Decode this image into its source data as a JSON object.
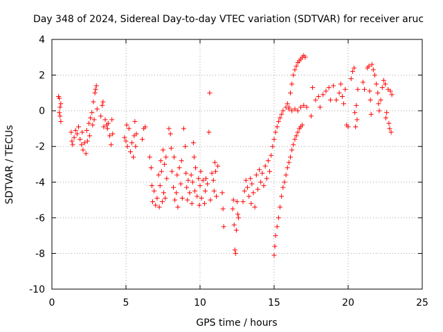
{
  "chart_data": {
    "type": "scatter",
    "title": "Day 348 of 2024, Sidereal Day-to-day VTEC variation (SDTVAR) for receiver aruc",
    "xlabel": "GPS time / hours",
    "ylabel": "SDTVAR / TECUs",
    "xlim": [
      0,
      25
    ],
    "ylim": [
      -10,
      4
    ],
    "xticks": [
      "0",
      "5",
      "10",
      "15",
      "20",
      "25"
    ],
    "yticks": [
      "4",
      "2",
      "0",
      "-2",
      "-4",
      "-6",
      "-8",
      "-10"
    ],
    "grid": true,
    "marker": "+",
    "series": [
      {
        "name": "SDTVAR",
        "color": "#ff0000",
        "points": [
          [
            0.45,
            0.8
          ],
          [
            0.5,
            0.7
          ],
          [
            0.55,
            0.2
          ],
          [
            0.55,
            -0.3
          ],
          [
            0.6,
            -0.6
          ],
          [
            0.5,
            -0.1
          ],
          [
            0.6,
            0.4
          ],
          [
            1.3,
            -1.2
          ],
          [
            1.35,
            -1.7
          ],
          [
            1.4,
            -1.9
          ],
          [
            1.5,
            -1.5
          ],
          [
            1.6,
            -1.1
          ],
          [
            1.7,
            -1.3
          ],
          [
            1.8,
            -0.9
          ],
          [
            1.9,
            -1.6
          ],
          [
            2.0,
            -1.9
          ],
          [
            2.05,
            -1.2
          ],
          [
            2.1,
            -2.2
          ],
          [
            2.2,
            -1.8
          ],
          [
            2.3,
            -2.4
          ],
          [
            2.35,
            -1.1
          ],
          [
            2.4,
            -1.7
          ],
          [
            2.5,
            -0.7
          ],
          [
            2.55,
            -1.4
          ],
          [
            2.6,
            -0.4
          ],
          [
            2.7,
            -0.1
          ],
          [
            2.75,
            -0.8
          ],
          [
            2.8,
            0.5
          ],
          [
            2.85,
            -0.5
          ],
          [
            2.9,
            1.0
          ],
          [
            2.95,
            1.2
          ],
          [
            3.0,
            1.4
          ],
          [
            3.05,
            0.1
          ],
          [
            3.3,
            -0.3
          ],
          [
            3.4,
            0.3
          ],
          [
            3.45,
            0.5
          ],
          [
            3.5,
            -0.9
          ],
          [
            3.6,
            -0.5
          ],
          [
            3.7,
            -0.8
          ],
          [
            3.75,
            -1.0
          ],
          [
            3.8,
            -0.7
          ],
          [
            3.9,
            -1.4
          ],
          [
            4.0,
            -1.9
          ],
          [
            4.05,
            -0.5
          ],
          [
            4.1,
            -1.3
          ],
          [
            4.9,
            -1.5
          ],
          [
            5.0,
            -1.7
          ],
          [
            5.05,
            -0.8
          ],
          [
            5.1,
            -2.0
          ],
          [
            5.2,
            -1.0
          ],
          [
            5.3,
            -2.3
          ],
          [
            5.4,
            -1.8
          ],
          [
            5.5,
            -2.6
          ],
          [
            5.55,
            -1.4
          ],
          [
            5.6,
            -0.6
          ],
          [
            5.65,
            -2.0
          ],
          [
            5.7,
            -1.3
          ],
          [
            6.1,
            -1.6
          ],
          [
            6.2,
            -1.0
          ],
          [
            6.3,
            -0.9
          ],
          [
            6.6,
            -2.6
          ],
          [
            6.7,
            -3.2
          ],
          [
            6.75,
            -4.2
          ],
          [
            6.8,
            -5.1
          ],
          [
            6.9,
            -4.5
          ],
          [
            7.0,
            -5.3
          ],
          [
            7.1,
            -4.9
          ],
          [
            7.2,
            -3.6
          ],
          [
            7.25,
            -5.4
          ],
          [
            7.3,
            -4.2
          ],
          [
            7.35,
            -2.8
          ],
          [
            7.4,
            -3.4
          ],
          [
            7.45,
            -5.1
          ],
          [
            7.5,
            -2.2
          ],
          [
            7.55,
            -4.6
          ],
          [
            7.6,
            -3.0
          ],
          [
            7.65,
            -4.9
          ],
          [
            7.7,
            -2.6
          ],
          [
            7.75,
            -3.8
          ],
          [
            7.9,
            -1.0
          ],
          [
            8.0,
            -1.3
          ],
          [
            8.05,
            -2.1
          ],
          [
            8.1,
            -3.4
          ],
          [
            8.2,
            -4.3
          ],
          [
            8.25,
            -2.6
          ],
          [
            8.3,
            -5.0
          ],
          [
            8.4,
            -4.6
          ],
          [
            8.45,
            -3.6
          ],
          [
            8.5,
            -5.4
          ],
          [
            8.6,
            -3.2
          ],
          [
            8.7,
            -4.1
          ],
          [
            8.75,
            -2.8
          ],
          [
            8.8,
            -4.9
          ],
          [
            8.9,
            -1.0
          ],
          [
            9.0,
            -2.0
          ],
          [
            9.05,
            -3.5
          ],
          [
            9.1,
            -4.3
          ],
          [
            9.15,
            -5.0
          ],
          [
            9.2,
            -3.9
          ],
          [
            9.3,
            -4.6
          ],
          [
            9.4,
            -3.6
          ],
          [
            9.45,
            -5.2
          ],
          [
            9.5,
            -4.0
          ],
          [
            9.55,
            -1.8
          ],
          [
            9.6,
            -2.6
          ],
          [
            9.65,
            -4.5
          ],
          [
            9.7,
            -3.2
          ],
          [
            9.8,
            -4.8
          ],
          [
            9.9,
            -3.8
          ],
          [
            9.95,
            -5.3
          ],
          [
            10.0,
            -4.2
          ],
          [
            10.05,
            -3.4
          ],
          [
            10.1,
            -4.9
          ],
          [
            10.2,
            -3.9
          ],
          [
            10.3,
            -5.2
          ],
          [
            10.35,
            -4.5
          ],
          [
            10.4,
            -3.8
          ],
          [
            10.5,
            -4.1
          ],
          [
            10.6,
            -1.2
          ],
          [
            10.65,
            1.0
          ],
          [
            10.7,
            -5.0
          ],
          [
            10.8,
            -3.5
          ],
          [
            10.9,
            -3.9
          ],
          [
            10.95,
            -4.5
          ],
          [
            11.0,
            -2.9
          ],
          [
            11.05,
            -3.4
          ],
          [
            11.1,
            -4.8
          ],
          [
            11.2,
            -3.1
          ],
          [
            11.5,
            -4.6
          ],
          [
            11.55,
            -5.5
          ],
          [
            11.6,
            -6.5
          ],
          [
            12.2,
            -5.5
          ],
          [
            12.25,
            -5.0
          ],
          [
            12.3,
            -6.4
          ],
          [
            12.35,
            -7.8
          ],
          [
            12.4,
            -8.0
          ],
          [
            12.45,
            -6.7
          ],
          [
            12.5,
            -5.1
          ],
          [
            12.55,
            -5.8
          ],
          [
            12.6,
            -6.0
          ],
          [
            12.9,
            -5.1
          ],
          [
            13.0,
            -4.5
          ],
          [
            13.1,
            -3.9
          ],
          [
            13.2,
            -4.3
          ],
          [
            13.3,
            -4.8
          ],
          [
            13.4,
            -3.8
          ],
          [
            13.45,
            -5.2
          ],
          [
            13.5,
            -4.1
          ],
          [
            13.6,
            -4.6
          ],
          [
            13.7,
            -5.4
          ],
          [
            13.8,
            -3.6
          ],
          [
            13.9,
            -4.4
          ],
          [
            14.0,
            -3.3
          ],
          [
            14.1,
            -4.0
          ],
          [
            14.2,
            -3.5
          ],
          [
            14.3,
            -4.2
          ],
          [
            14.4,
            -3.1
          ],
          [
            14.5,
            -3.8
          ],
          [
            14.6,
            -2.8
          ],
          [
            14.7,
            -3.4
          ],
          [
            14.8,
            -2.5
          ],
          [
            14.9,
            -2.0
          ],
          [
            15.0,
            -1.6
          ],
          [
            15.1,
            -1.2
          ],
          [
            15.2,
            -0.9
          ],
          [
            15.3,
            -0.6
          ],
          [
            15.4,
            -0.4
          ],
          [
            15.5,
            -0.2
          ],
          [
            15.6,
            0.0
          ],
          [
            15.8,
            0.2
          ],
          [
            15.9,
            0.4
          ],
          [
            16.0,
            0.2
          ],
          [
            16.1,
            1.0
          ],
          [
            16.2,
            1.5
          ],
          [
            16.3,
            2.0
          ],
          [
            16.4,
            2.3
          ],
          [
            16.5,
            2.5
          ],
          [
            16.6,
            2.7
          ],
          [
            16.7,
            2.8
          ],
          [
            16.8,
            2.9
          ],
          [
            16.9,
            3.0
          ],
          [
            17.0,
            3.1
          ],
          [
            17.1,
            3.0
          ],
          [
            15.0,
            -8.1
          ],
          [
            15.05,
            -7.6
          ],
          [
            15.1,
            -7.0
          ],
          [
            15.2,
            -6.5
          ],
          [
            15.3,
            -6.0
          ],
          [
            15.4,
            -5.4
          ],
          [
            15.5,
            -4.8
          ],
          [
            15.6,
            -4.3
          ],
          [
            15.7,
            -4.0
          ],
          [
            15.8,
            -3.6
          ],
          [
            15.9,
            -3.2
          ],
          [
            16.0,
            -2.9
          ],
          [
            16.1,
            -2.6
          ],
          [
            16.2,
            -2.2
          ],
          [
            16.3,
            -1.9
          ],
          [
            16.4,
            -1.6
          ],
          [
            16.5,
            -1.4
          ],
          [
            16.6,
            -1.2
          ],
          [
            16.7,
            -1.0
          ],
          [
            16.8,
            -0.9
          ],
          [
            16.9,
            -0.8
          ],
          [
            16.0,
            0.1
          ],
          [
            16.2,
            0.0
          ],
          [
            16.4,
            0.1
          ],
          [
            16.6,
            0.0
          ],
          [
            16.8,
            0.2
          ],
          [
            17.0,
            0.3
          ],
          [
            17.2,
            0.2
          ],
          [
            17.5,
            -0.3
          ],
          [
            17.6,
            1.3
          ],
          [
            17.8,
            0.6
          ],
          [
            18.0,
            0.8
          ],
          [
            18.1,
            0.2
          ],
          [
            18.3,
            0.9
          ],
          [
            18.5,
            1.1
          ],
          [
            18.7,
            1.3
          ],
          [
            18.8,
            0.6
          ],
          [
            19.0,
            1.4
          ],
          [
            19.2,
            0.6
          ],
          [
            19.4,
            1.0
          ],
          [
            19.5,
            1.5
          ],
          [
            19.6,
            0.8
          ],
          [
            19.7,
            0.4
          ],
          [
            19.8,
            1.2
          ],
          [
            19.9,
            -0.8
          ],
          [
            20.0,
            -0.9
          ],
          [
            20.2,
            1.8
          ],
          [
            20.3,
            2.2
          ],
          [
            20.4,
            2.4
          ],
          [
            20.45,
            -0.1
          ],
          [
            20.5,
            -0.9
          ],
          [
            20.55,
            0.3
          ],
          [
            20.6,
            -0.5
          ],
          [
            20.65,
            1.2
          ],
          [
            21.0,
            1.6
          ],
          [
            21.1,
            1.2
          ],
          [
            21.3,
            2.4
          ],
          [
            21.4,
            2.5
          ],
          [
            21.45,
            1.1
          ],
          [
            21.5,
            0.6
          ],
          [
            21.55,
            -0.2
          ],
          [
            21.6,
            2.6
          ],
          [
            21.7,
            2.3
          ],
          [
            21.8,
            2.0
          ],
          [
            21.9,
            1.5
          ],
          [
            22.0,
            1.0
          ],
          [
            22.05,
            0.4
          ],
          [
            22.1,
            0.0
          ],
          [
            22.2,
            0.6
          ],
          [
            22.3,
            1.3
          ],
          [
            22.4,
            1.7
          ],
          [
            22.5,
            1.5
          ],
          [
            22.55,
            -0.4
          ],
          [
            22.6,
            -0.1
          ],
          [
            22.7,
            1.2
          ],
          [
            22.75,
            -0.7
          ],
          [
            22.8,
            -1.0
          ],
          [
            22.85,
            1.1
          ],
          [
            22.9,
            -1.2
          ],
          [
            22.95,
            0.9
          ]
        ]
      }
    ]
  }
}
